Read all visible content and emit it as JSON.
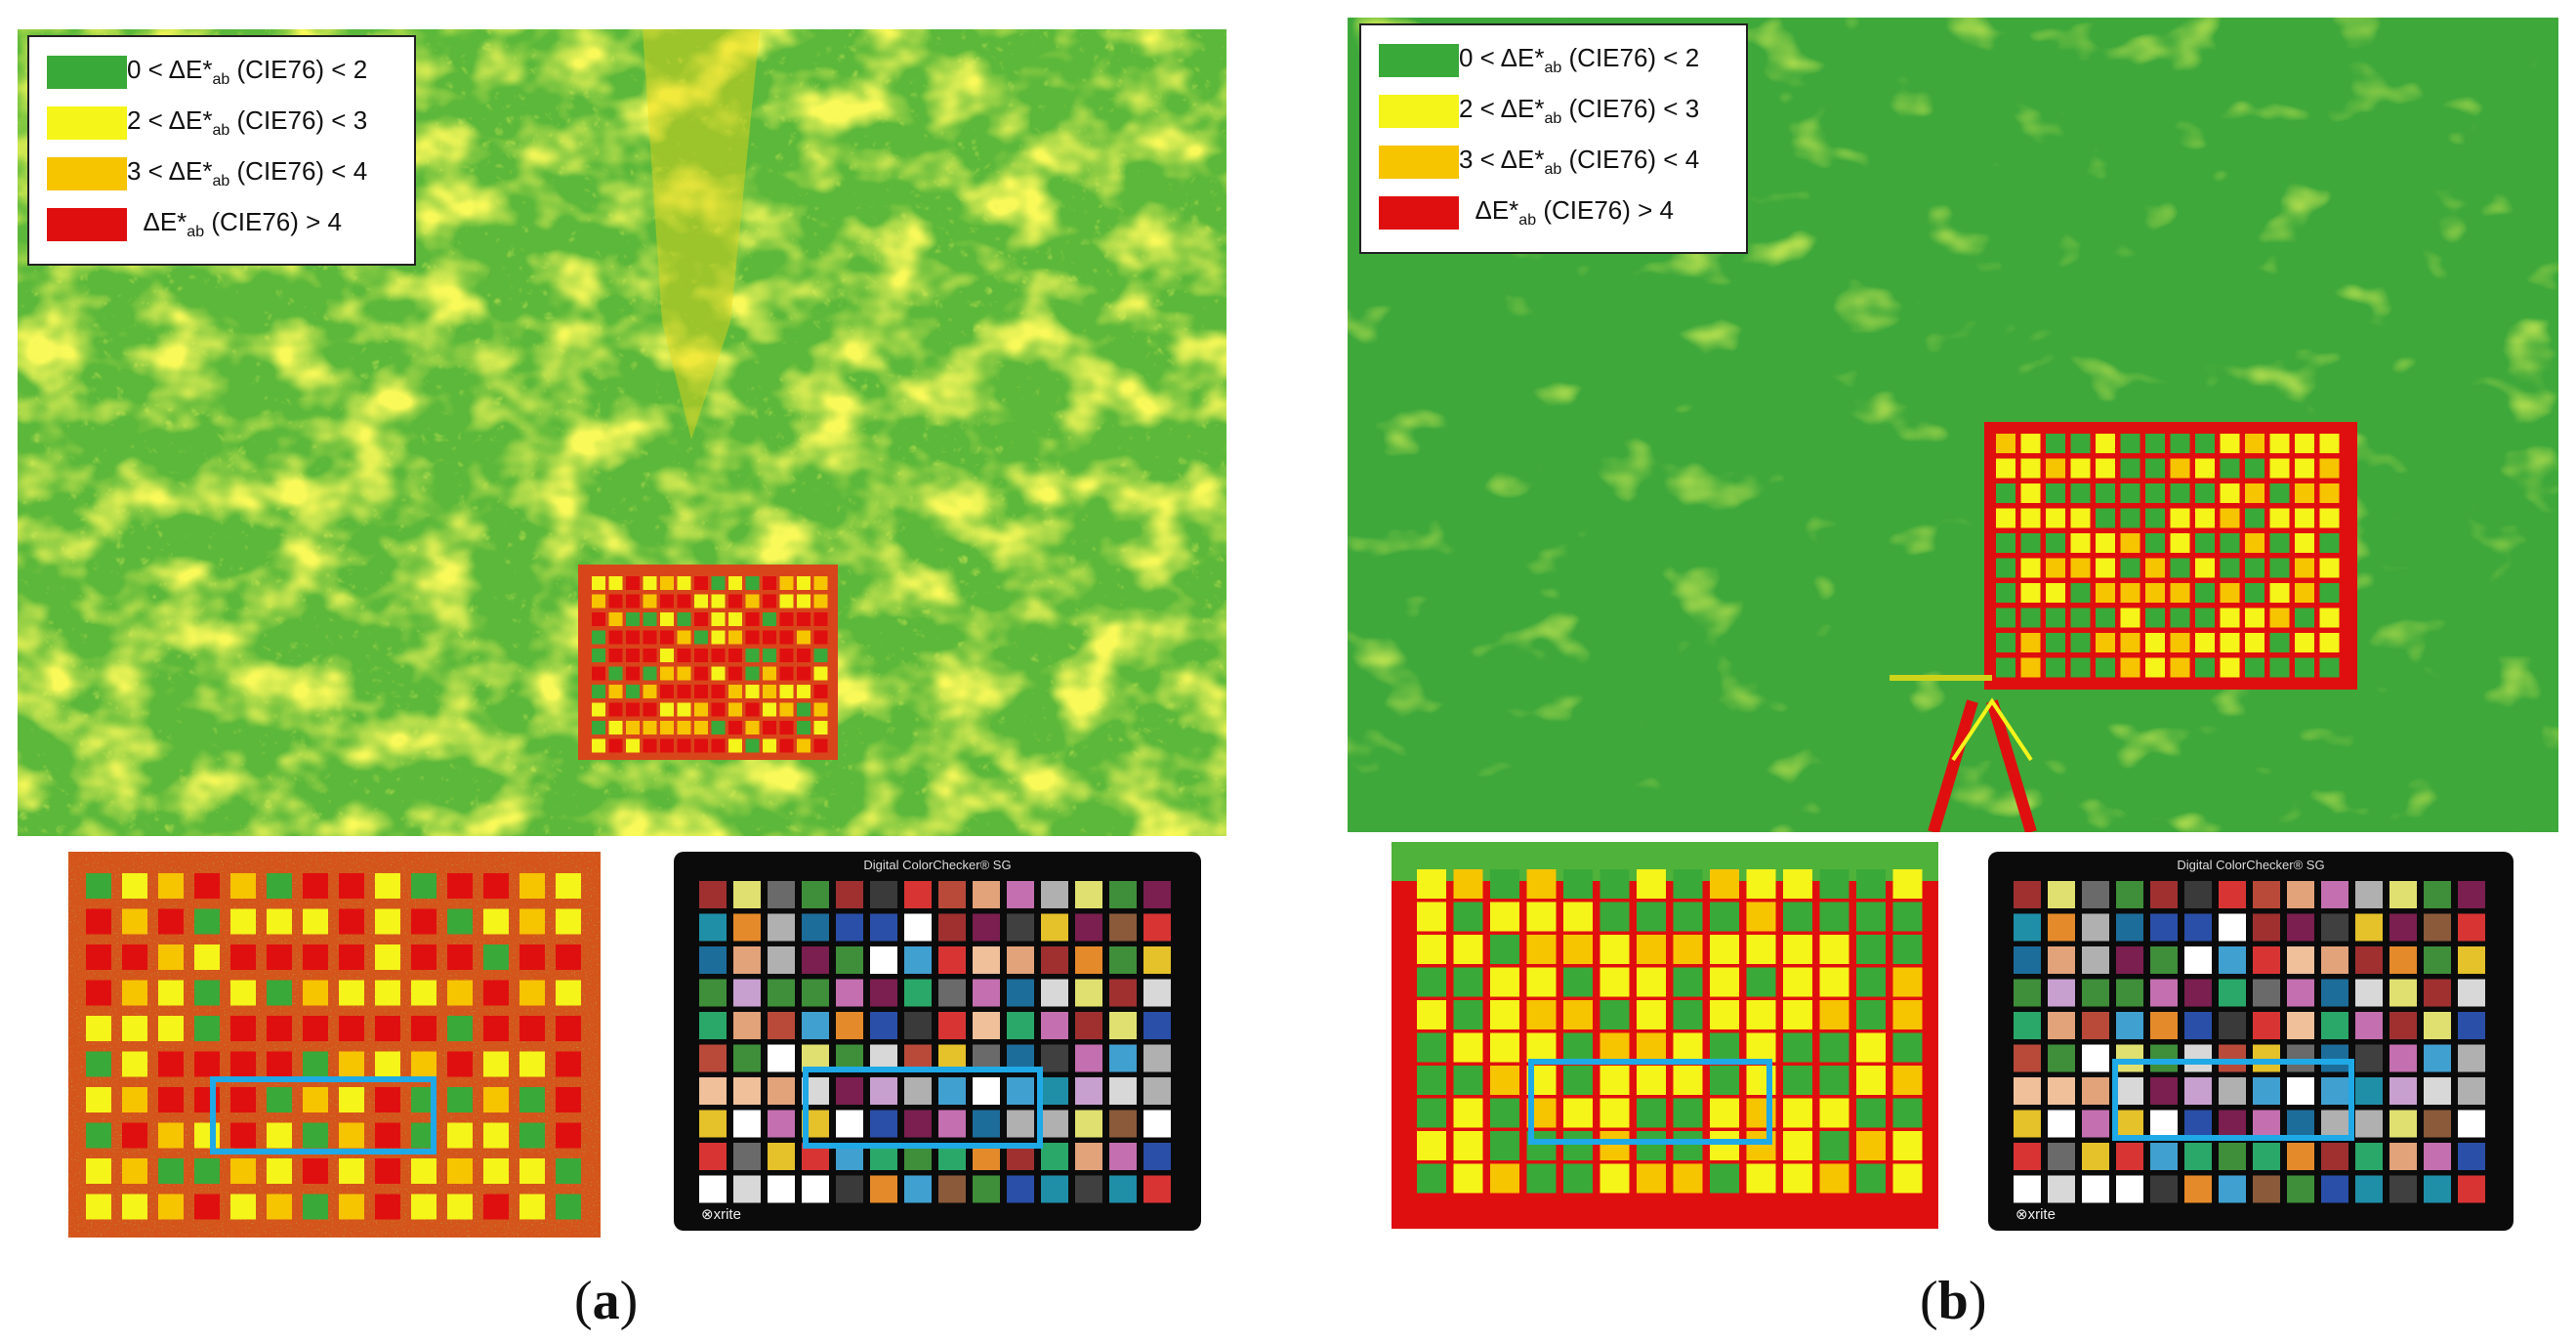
{
  "colors": {
    "green": "#39a93a",
    "yellow": "#f5f51a",
    "amber": "#f7c400",
    "red": "#e00f0f",
    "highlight": "#1fa9e6"
  },
  "legend": {
    "items": [
      {
        "low": "0 < ΔE*",
        "sub": "ab",
        "high": " (CIE76) < 2",
        "color": "#39a93a"
      },
      {
        "low": "2 < ΔE*",
        "sub": "ab",
        "high": " (CIE76) < 3",
        "color": "#f5f51a"
      },
      {
        "low": "3 < ΔE*",
        "sub": "ab",
        "high": " (CIE76) < 4",
        "color": "#f7c400"
      },
      {
        "low": "ΔE*",
        "sub": "ab",
        "high": " (CIE76) > 4",
        "color": "#e00f0f"
      }
    ]
  },
  "panels": [
    {
      "caption_open": "(",
      "caption_letter": "a",
      "caption_close": ")"
    },
    {
      "caption_open": "(",
      "caption_letter": "b",
      "caption_close": ")"
    }
  ],
  "colorchecker": {
    "title": "Digital ColorChecker® SG",
    "brand": "⊗xrite"
  }
}
